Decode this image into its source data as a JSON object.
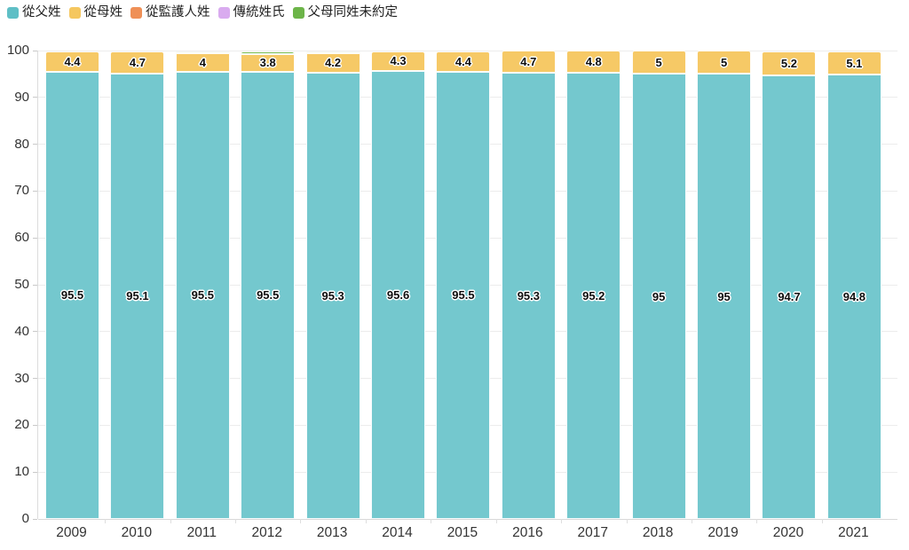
{
  "page": {
    "background": "#ffffff"
  },
  "legend": {
    "position": "top-left",
    "items": [
      {
        "label": "從父姓",
        "color": "#5fbfc6"
      },
      {
        "label": "從母姓",
        "color": "#f5c75f"
      },
      {
        "label": "從監護人姓",
        "color": "#ef9057"
      },
      {
        "label": "傳統姓氏",
        "color": "#d9abef"
      },
      {
        "label": "父母同姓未約定",
        "color": "#6db549"
      }
    ]
  },
  "chart_data": {
    "type": "bar",
    "stacked": true,
    "orientation": "vertical",
    "title": "",
    "xlabel": "",
    "ylabel": "",
    "categories": [
      "2009",
      "2010",
      "2011",
      "2012",
      "2013",
      "2014",
      "2015",
      "2016",
      "2017",
      "2018",
      "2019",
      "2020",
      "2021"
    ],
    "series": [
      {
        "name": "從父姓",
        "color": "#74c8ce",
        "labels_visible": true,
        "values": [
          95.5,
          95.1,
          95.5,
          95.5,
          95.3,
          95.6,
          95.5,
          95.3,
          95.2,
          95,
          95,
          94.7,
          94.8
        ]
      },
      {
        "name": "從母姓",
        "color": "#f6c966",
        "labels_visible": true,
        "values": [
          4.4,
          4.7,
          4,
          3.8,
          4.2,
          4.3,
          4.4,
          4.7,
          4.8,
          5,
          5,
          5.2,
          5.1
        ]
      },
      {
        "name": "從監護人姓",
        "color": "#ef9057",
        "labels_visible": false,
        "values": [
          0,
          0,
          0,
          0,
          0,
          0,
          0,
          0,
          0,
          0,
          0,
          0,
          0
        ]
      },
      {
        "name": "傳統姓氏",
        "color": "#d9abef",
        "labels_visible": false,
        "values": [
          0,
          0,
          0,
          0,
          0,
          0,
          0,
          0,
          0,
          0,
          0,
          0,
          0
        ]
      },
      {
        "name": "父母同姓未約定",
        "color": "#7cbd53",
        "labels_visible": false,
        "values": [
          0,
          0,
          0.4,
          0.6,
          0.4,
          0,
          0,
          0,
          0,
          0,
          0,
          0,
          0
        ]
      }
    ],
    "ylim": [
      0,
      100
    ],
    "ytick_step": 10,
    "yticks": [
      0,
      10,
      20,
      30,
      40,
      50,
      60,
      70,
      80,
      90,
      100
    ],
    "grid": true,
    "grid_color": "#ececec",
    "axis_color": "#dcdcdc",
    "legend_position": "top-left"
  }
}
